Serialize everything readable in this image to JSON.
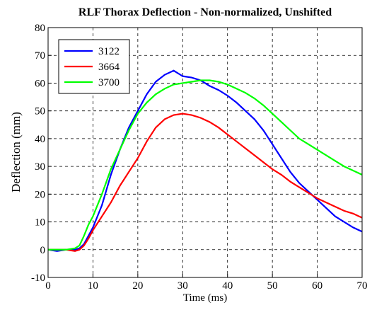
{
  "chart_data": {
    "type": "line",
    "title": "RLF Thorax Deflection - Non-normalized, Unshifted",
    "x_label": "Time (ms)",
    "y_label": "Deflection (mm)",
    "x": [
      0,
      2,
      4,
      6,
      7,
      8,
      9,
      10,
      12,
      14,
      16,
      18,
      20,
      22,
      24,
      26,
      28,
      30,
      32,
      34,
      36,
      38,
      40,
      42,
      44,
      46,
      48,
      50,
      52,
      54,
      56,
      58,
      60,
      62,
      64,
      66,
      68,
      70
    ],
    "series": [
      {
        "name": "3122",
        "color": "#0000ff",
        "values": [
          0,
          -0.5,
          0,
          0,
          0.5,
          2,
          5,
          8,
          16,
          27,
          36,
          44,
          50,
          56,
          60.5,
          63,
          64.5,
          62.5,
          62,
          61,
          59,
          57.5,
          55.5,
          53,
          50,
          47,
          43,
          38,
          33,
          28,
          24,
          21,
          18,
          15,
          12,
          10,
          8,
          6.5
        ]
      },
      {
        "name": "3664",
        "color": "#ff0000",
        "values": [
          0,
          0,
          0,
          -0.5,
          0,
          1.5,
          4,
          7,
          12,
          17,
          23,
          28,
          33,
          39,
          44,
          47,
          48.5,
          49,
          48.5,
          47.5,
          46,
          44,
          41.5,
          39,
          36.5,
          34,
          31.5,
          29,
          27,
          24.5,
          22.5,
          20.5,
          18.5,
          17,
          15.5,
          14,
          13,
          11.5
        ]
      },
      {
        "name": "3700",
        "color": "#00ff00",
        "values": [
          0,
          0,
          0,
          0.5,
          1.5,
          5,
          9,
          12,
          20,
          29,
          36,
          43,
          49,
          53,
          56,
          58,
          59.5,
          60,
          60.5,
          61,
          61,
          60.5,
          59.5,
          58,
          56.5,
          54.5,
          52,
          49,
          46,
          43,
          40,
          38,
          36,
          34,
          32,
          30,
          28.5,
          27
        ]
      }
    ],
    "xlim": [
      0,
      70
    ],
    "xticks": [
      0,
      10,
      20,
      30,
      40,
      50,
      60,
      70
    ],
    "ylim": [
      -10,
      80
    ],
    "yticks": [
      -10,
      0,
      10,
      20,
      30,
      40,
      50,
      60,
      70,
      80
    ],
    "grid": true,
    "legend": "upper-left"
  }
}
